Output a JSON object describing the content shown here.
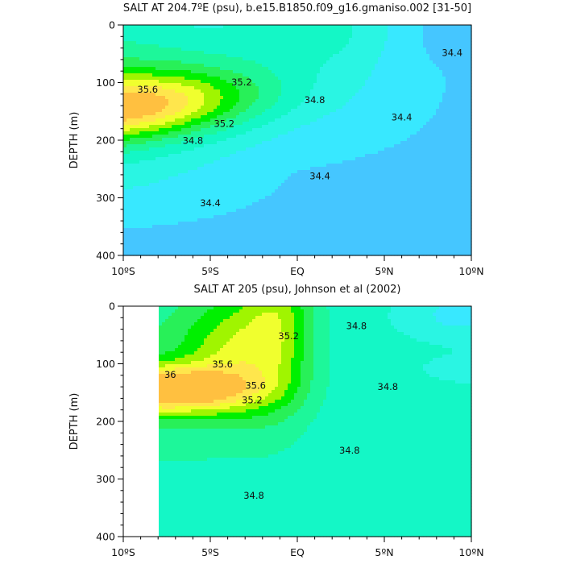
{
  "chart_data": [
    {
      "type": "contour",
      "title": "SALT AT 204.7ºE (psu), b.e15.B1850.f09_g16.gmaniso.002 [31-50]",
      "ylabel": "DEPTH (m)",
      "xlim": [
        -10,
        10
      ],
      "ylim": [
        400,
        0
      ],
      "x_ticks": [
        {
          "value": -10,
          "label": "10ºS"
        },
        {
          "value": -5,
          "label": "5ºS"
        },
        {
          "value": 0,
          "label": "EQ"
        },
        {
          "value": 5,
          "label": "5ºN"
        },
        {
          "value": 10,
          "label": "10ºN"
        }
      ],
      "y_ticks": [
        {
          "value": 0,
          "label": "0"
        },
        {
          "value": 100,
          "label": "100"
        },
        {
          "value": 200,
          "label": "200"
        },
        {
          "value": 300,
          "label": "300"
        },
        {
          "value": 400,
          "label": "400"
        }
      ],
      "contour_interval": 0.2,
      "levels": [
        {
          "lo": -1,
          "hi": 34.2,
          "color": "#45c6ff"
        },
        {
          "lo": 34.2,
          "hi": 34.4,
          "color": "#38e8ff"
        },
        {
          "lo": 34.4,
          "hi": 34.6,
          "color": "#2af5e3"
        },
        {
          "lo": 34.6,
          "hi": 34.8,
          "color": "#14f7c6"
        },
        {
          "lo": 34.8,
          "hi": 35.0,
          "color": "#1df79a"
        },
        {
          "lo": 35.0,
          "hi": 35.2,
          "color": "#28f058"
        },
        {
          "lo": 35.2,
          "hi": 35.4,
          "color": "#00f000"
        },
        {
          "lo": 35.4,
          "hi": 35.6,
          "color": "#a0f500"
        },
        {
          "lo": 35.6,
          "hi": 35.8,
          "color": "#f0ff2e"
        },
        {
          "lo": 35.8,
          "hi": 36.0,
          "color": "#ffe64c"
        },
        {
          "lo": 36.0,
          "hi": 99,
          "color": "#ffc040"
        }
      ],
      "contour_labels": [
        {
          "text": "35.6",
          "x": -8.6,
          "y": 112
        },
        {
          "text": "35.2",
          "x": -3.2,
          "y": 99
        },
        {
          "text": "35.2",
          "x": -4.2,
          "y": 171
        },
        {
          "text": "34.8",
          "x": -6.0,
          "y": 201
        },
        {
          "text": "34.8",
          "x": 1.0,
          "y": 130
        },
        {
          "text": "34.4",
          "x": 1.3,
          "y": 262
        },
        {
          "text": "34.4",
          "x": -5.0,
          "y": 309
        },
        {
          "text": "34.4",
          "x": 6.0,
          "y": 160
        },
        {
          "text": "34.4",
          "x": 8.9,
          "y": 48
        }
      ]
    },
    {
      "type": "contour",
      "title": "SALT AT 205 (psu), Johnson et al (2002)",
      "ylabel": "DEPTH (m)",
      "xlim": [
        -10,
        10
      ],
      "ylim": [
        400,
        0
      ],
      "data_xmin": -8,
      "x_ticks": [
        {
          "value": -10,
          "label": "10ºS"
        },
        {
          "value": -5,
          "label": "5ºS"
        },
        {
          "value": 0,
          "label": "EQ"
        },
        {
          "value": 5,
          "label": "5ºN"
        },
        {
          "value": 10,
          "label": "10ºN"
        }
      ],
      "y_ticks": [
        {
          "value": 0,
          "label": "0"
        },
        {
          "value": 100,
          "label": "100"
        },
        {
          "value": 200,
          "label": "200"
        },
        {
          "value": 300,
          "label": "300"
        },
        {
          "value": 400,
          "label": "400"
        }
      ],
      "contour_interval": 0.2,
      "levels": [
        {
          "lo": -1,
          "hi": 34.2,
          "color": "#45c6ff"
        },
        {
          "lo": 34.2,
          "hi": 34.4,
          "color": "#38e8ff"
        },
        {
          "lo": 34.4,
          "hi": 34.6,
          "color": "#2af5e3"
        },
        {
          "lo": 34.6,
          "hi": 34.8,
          "color": "#14f7c6"
        },
        {
          "lo": 34.8,
          "hi": 35.0,
          "color": "#1df79a"
        },
        {
          "lo": 35.0,
          "hi": 35.2,
          "color": "#28f058"
        },
        {
          "lo": 35.2,
          "hi": 35.4,
          "color": "#00f000"
        },
        {
          "lo": 35.4,
          "hi": 35.6,
          "color": "#a0f500"
        },
        {
          "lo": 35.6,
          "hi": 35.8,
          "color": "#f0ff2e"
        },
        {
          "lo": 35.8,
          "hi": 36.0,
          "color": "#ffe64c"
        },
        {
          "lo": 36.0,
          "hi": 99,
          "color": "#ffc040"
        }
      ],
      "contour_labels": [
        {
          "text": "35.6",
          "x": -4.3,
          "y": 101
        },
        {
          "text": "36",
          "x": -7.3,
          "y": 119
        },
        {
          "text": "35.6",
          "x": -2.4,
          "y": 138
        },
        {
          "text": "35.2",
          "x": -2.6,
          "y": 163
        },
        {
          "text": "35.2",
          "x": -0.5,
          "y": 52
        },
        {
          "text": "34.8",
          "x": 3.4,
          "y": 34
        },
        {
          "text": "34.8",
          "x": 5.2,
          "y": 140
        },
        {
          "text": "34.8",
          "x": 3.0,
          "y": 250
        },
        {
          "text": "34.8",
          "x": -2.5,
          "y": 329
        }
      ]
    }
  ]
}
